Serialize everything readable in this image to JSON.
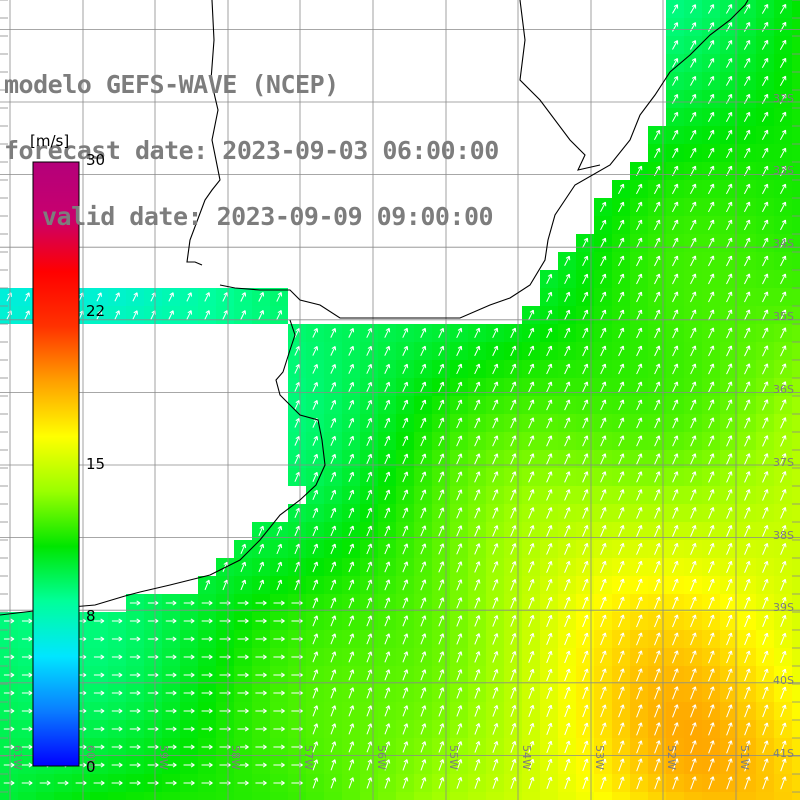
{
  "title": {
    "line1": "modelo GEFS-WAVE (NCEP)",
    "line2": "forecast date: 2023-09-03 06:00:00",
    "line3": "valid date: 2023-09-09 09:00:00"
  },
  "colorbar": {
    "unit": "[m/s]",
    "ticks": [
      "30",
      "22",
      "15",
      "8",
      "0"
    ],
    "tick_values": [
      30,
      22,
      15,
      8,
      0
    ],
    "range": [
      0,
      30
    ],
    "colors": [
      "#0000ff",
      "#0a7dff",
      "#00e6ff",
      "#00ff9a",
      "#00e600",
      "#9aff00",
      "#ffff00",
      "#ffa000",
      "#ff3200",
      "#ff0000",
      "#c8006e",
      "#b4007a"
    ]
  },
  "map": {
    "background": "#ffffff",
    "grid_color": "#8a8a8a",
    "coast_color": "#000000",
    "lat_labels": [
      "32S",
      "33S",
      "34S",
      "35S",
      "36S",
      "37S",
      "38S",
      "39S",
      "40S",
      "41S"
    ],
    "lat_values": [
      -32,
      -33,
      -34,
      -35,
      -36,
      -37,
      -38,
      -39,
      -40,
      -41
    ],
    "lon_labels": [
      "61W",
      "60W",
      "59W",
      "58W",
      "57W",
      "56W",
      "55W",
      "54W",
      "53W",
      "52W",
      "51W"
    ],
    "lon_values": [
      -61,
      -60,
      -59,
      -58,
      -57,
      -56,
      -55,
      -54,
      -53,
      -52,
      -51
    ],
    "region": "Rio de la Plata / Uruguay coast, South Atlantic",
    "field": "wind speed with direction arrows",
    "speed_range_shown": [
      4,
      16
    ]
  }
}
